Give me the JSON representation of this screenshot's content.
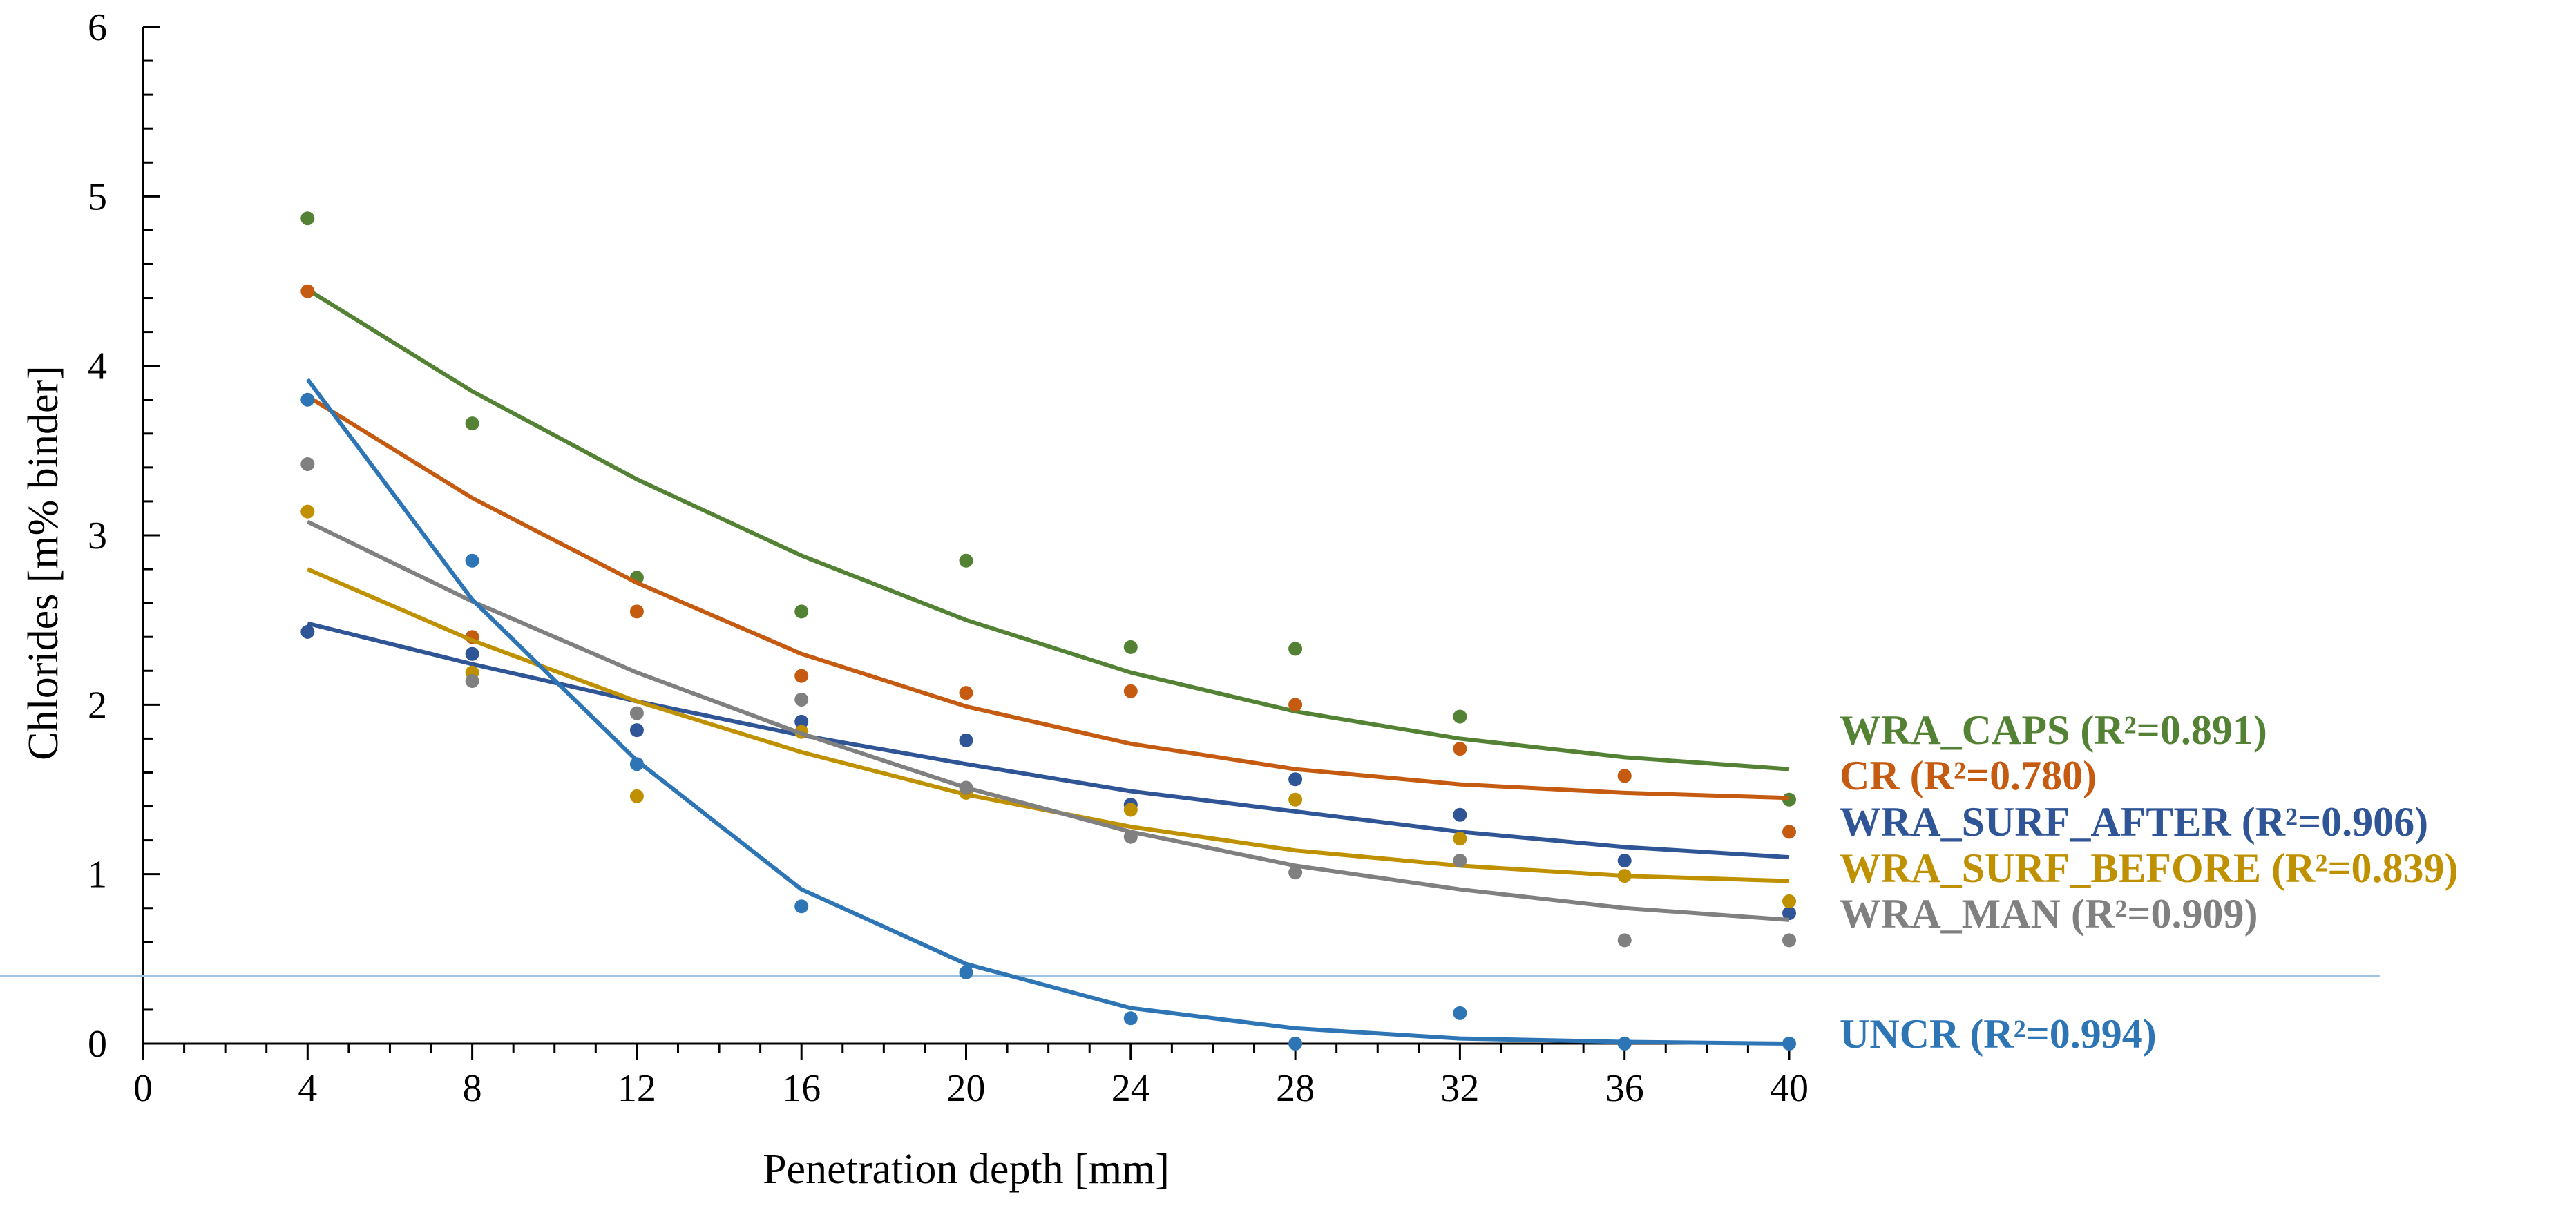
{
  "chart_data": {
    "type": "scatter",
    "title": "",
    "xlabel": "Penetration depth [mm]",
    "ylabel": "Chlorides [m% binder]",
    "xlim": [
      0,
      40
    ],
    "ylim": [
      0,
      6
    ],
    "xticks": [
      0,
      4,
      8,
      12,
      16,
      20,
      24,
      28,
      32,
      36,
      40
    ],
    "yticks": [
      0,
      1,
      2,
      3,
      4,
      5,
      6
    ],
    "threshold_line": 0.4,
    "grid": false,
    "legend": "right, inline series labels",
    "x": [
      4,
      8,
      12,
      16,
      20,
      24,
      28,
      32,
      36,
      40
    ],
    "series": [
      {
        "name": "WRA_CAPS",
        "label": "WRA_CAPS (R²=0.891)",
        "color": "#548235",
        "points": [
          4.87,
          3.66,
          2.75,
          2.55,
          2.85,
          2.34,
          2.33,
          1.93,
          1.58,
          1.44
        ],
        "fit": [
          4.45,
          3.85,
          3.33,
          2.88,
          2.5,
          2.19,
          1.96,
          1.8,
          1.69,
          1.62
        ]
      },
      {
        "name": "CR",
        "label": "CR (R²=0.780)",
        "color": "#C55A11",
        "points": [
          4.44,
          2.4,
          2.55,
          2.17,
          2.07,
          2.08,
          2.0,
          1.74,
          1.58,
          1.25
        ],
        "fit": [
          3.82,
          3.22,
          2.72,
          2.3,
          1.99,
          1.77,
          1.62,
          1.53,
          1.48,
          1.45
        ]
      },
      {
        "name": "WRA_SURF_AFTER",
        "label": "WRA_SURF_AFTER (R²=0.906)",
        "color": "#2F5597",
        "points": [
          2.43,
          2.3,
          1.85,
          1.9,
          1.79,
          1.41,
          1.56,
          1.35,
          1.08,
          0.77
        ],
        "fit": [
          2.48,
          2.24,
          2.02,
          1.82,
          1.65,
          1.49,
          1.37,
          1.25,
          1.16,
          1.1
        ]
      },
      {
        "name": "WRA_SURF_BEFORE",
        "label": "WRA_SURF_BEFORE (R²=0.839)",
        "color": "#BF9000",
        "points": [
          3.14,
          2.19,
          1.46,
          1.84,
          1.48,
          1.38,
          1.44,
          1.21,
          0.99,
          0.84
        ],
        "fit": [
          2.8,
          2.38,
          2.02,
          1.72,
          1.47,
          1.28,
          1.14,
          1.05,
          0.99,
          0.96
        ]
      },
      {
        "name": "WRA_MAN",
        "label": "WRA_MAN (R²=0.909)",
        "color": "#808080",
        "points": [
          3.42,
          2.14,
          1.95,
          2.03,
          1.51,
          1.22,
          1.01,
          1.08,
          0.61,
          0.61
        ],
        "fit": [
          3.08,
          2.61,
          2.19,
          1.83,
          1.51,
          1.25,
          1.05,
          0.91,
          0.8,
          0.73
        ]
      },
      {
        "name": "UNCR",
        "label": "UNCR (R²=0.994)",
        "color": "#2E75B6",
        "points": [
          3.8,
          2.85,
          1.65,
          0.81,
          0.42,
          0.15,
          0.0,
          0.18,
          0.0,
          0.0
        ],
        "fit": [
          3.92,
          2.62,
          1.67,
          0.91,
          0.47,
          0.21,
          0.09,
          0.03,
          0.01,
          0.0
        ]
      }
    ]
  },
  "colors": {
    "axis": "#000000",
    "threshold": "#9DC3E6"
  }
}
